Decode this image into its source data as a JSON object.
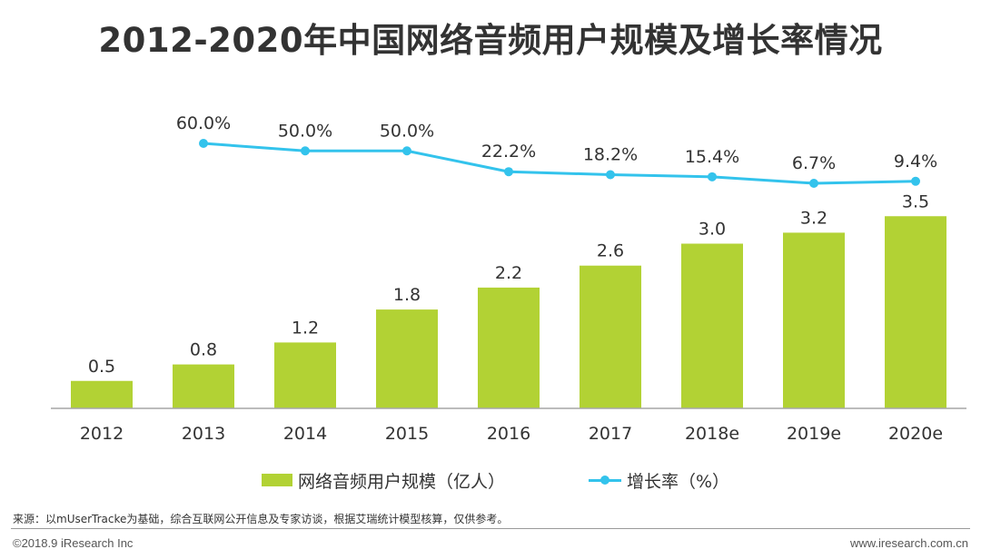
{
  "title": "2012-2020年中国网络音频用户规模及增长率情况",
  "chart_data": {
    "type": "bar+line",
    "title": "2012-2020年中国网络音频用户规模及增长率情况",
    "categories": [
      "2012",
      "2013",
      "2014",
      "2015",
      "2016",
      "2017",
      "2018e",
      "2019e",
      "2020e"
    ],
    "series": [
      {
        "name": "网络音频用户规模（亿人）",
        "type": "bar",
        "values": [
          0.5,
          0.8,
          1.2,
          1.8,
          2.2,
          2.6,
          3.0,
          3.2,
          3.5
        ],
        "labels": [
          "0.5",
          "0.8",
          "1.2",
          "1.8",
          "2.2",
          "2.6",
          "3.0",
          "3.2",
          "3.5"
        ]
      },
      {
        "name": "增长率（%）",
        "type": "line",
        "values": [
          null,
          60.0,
          50.0,
          50.0,
          22.2,
          18.2,
          15.4,
          6.7,
          9.4
        ],
        "labels": [
          "",
          "60.0%",
          "50.0%",
          "50.0%",
          "22.2%",
          "18.2%",
          "15.4%",
          "6.7%",
          "9.4%"
        ]
      }
    ],
    "xlabel": "",
    "ylabel": "",
    "ylim_bar": [
      0,
      4.4
    ],
    "grid": false,
    "legend_position": "bottom-center"
  },
  "legend": {
    "bar_label": "网络音频用户规模（亿人）",
    "line_label": "增长率（%）"
  },
  "colors": {
    "bar": "#b2d234",
    "line": "#33c3ec",
    "axis": "#a6a6a6",
    "text": "#333333"
  },
  "footer": {
    "source": "来源：以mUserTracke为基础，综合互联网公开信息及专家访谈，根据艾瑞统计模型核算，仅供参考。",
    "copyright": "©2018.9 iResearch Inc",
    "website": "www.iresearch.com.cn"
  }
}
